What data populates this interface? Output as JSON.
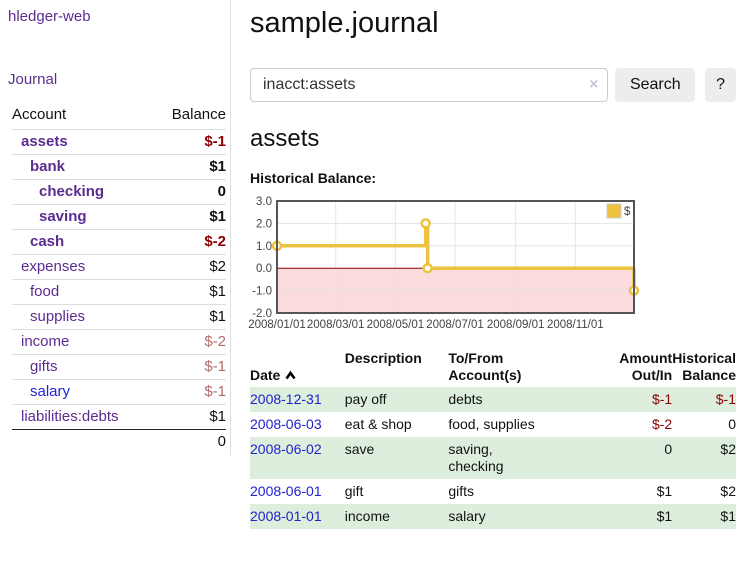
{
  "app": {
    "title": "hledger-web"
  },
  "sidebar": {
    "journal_link": "Journal",
    "account_header": "Account",
    "balance_header": "Balance",
    "accounts": [
      {
        "name": "assets",
        "indent": 1,
        "bold": true,
        "balance": "$-1",
        "balance_style": "neg-strong"
      },
      {
        "name": "bank",
        "indent": 2,
        "bold": true,
        "balance": "$1",
        "balance_style": "pos"
      },
      {
        "name": "checking",
        "indent": 3,
        "bold": true,
        "balance": "0",
        "balance_style": "pos"
      },
      {
        "name": "saving",
        "indent": 3,
        "bold": true,
        "balance": "$1",
        "balance_style": "pos"
      },
      {
        "name": "cash",
        "indent": 2,
        "bold": true,
        "balance": "$-2",
        "balance_style": "neg-strong"
      },
      {
        "name": "expenses",
        "indent": 1,
        "bold": false,
        "balance": "$2",
        "balance_style": "pos"
      },
      {
        "name": "food",
        "indent": 2,
        "bold": false,
        "balance": "$1",
        "balance_style": "pos"
      },
      {
        "name": "supplies",
        "indent": 2,
        "bold": false,
        "balance": "$1",
        "balance_style": "pos"
      },
      {
        "name": "income",
        "indent": 1,
        "bold": false,
        "balance": "$-2",
        "balance_style": "neg-muted"
      },
      {
        "name": "gifts",
        "indent": 2,
        "bold": false,
        "balance": "$-1",
        "balance_style": "neg-muted"
      },
      {
        "name": "salary",
        "indent": 2,
        "bold": false,
        "link_style": "unvisited",
        "balance": "$-1",
        "balance_style": "neg-muted"
      },
      {
        "name": "liabilities:debts",
        "indent": 1,
        "bold": false,
        "balance": "$1",
        "balance_style": "pos"
      }
    ],
    "total": "0"
  },
  "header": {
    "title": "sample.journal"
  },
  "search": {
    "value": "inacct:assets",
    "clear_icon": "×",
    "button_label": "Search",
    "help_label": "?"
  },
  "account_page": {
    "title": "assets",
    "chart_label": "Historical Balance:"
  },
  "chart_data": {
    "type": "line",
    "subtype": "step",
    "title": "Historical Balance",
    "series": [
      {
        "name": "$",
        "color": "#EDC240",
        "points": [
          [
            "2008-01-01",
            1
          ],
          [
            "2008-06-01",
            2
          ],
          [
            "2008-06-03",
            0
          ],
          [
            "2008-12-31",
            -1
          ]
        ]
      }
    ],
    "x_ticks": [
      "2008-01-01",
      "2008-03-01",
      "2008-05-01",
      "2008-07-01",
      "2008-09-01",
      "2008-11-01"
    ],
    "x_tick_format": "YYYY/MM/DD",
    "y_ticks": [
      3,
      2,
      1,
      0,
      -1,
      -2
    ],
    "ylim": [
      -2,
      3
    ],
    "xlim": [
      "2008-01-01",
      "2008-12-31"
    ],
    "grid": true,
    "legend_position": "top-right",
    "negative_region_color": "#fbdbdb",
    "zero_line_color": "#8b0000",
    "border_color": "#555555",
    "grid_color": "#e5e5e5"
  },
  "register": {
    "headers": {
      "date": "Date",
      "description": "Description",
      "accounts": "To/From\nAccount(s)",
      "amount": "Amount\nOut/In",
      "balance": "Historical\nBalance"
    },
    "rows": [
      {
        "date": "2008-12-31",
        "description": "pay off",
        "accounts": "debts",
        "amount": "$-1",
        "amount_neg": true,
        "balance": "$-1",
        "balance_neg": true
      },
      {
        "date": "2008-06-03",
        "description": "eat & shop",
        "accounts": "food, supplies",
        "amount": "$-2",
        "amount_neg": true,
        "balance": "0",
        "balance_neg": false
      },
      {
        "date": "2008-06-02",
        "description": "save",
        "accounts": "saving,\nchecking",
        "amount": "0",
        "amount_neg": false,
        "balance": "$2",
        "balance_neg": false
      },
      {
        "date": "2008-06-01",
        "description": "gift",
        "accounts": "gifts",
        "amount": "$1",
        "amount_neg": false,
        "balance": "$2",
        "balance_neg": false
      },
      {
        "date": "2008-01-01",
        "description": "income",
        "accounts": "salary",
        "amount": "$1",
        "amount_neg": false,
        "balance": "$1",
        "balance_neg": false
      }
    ]
  }
}
